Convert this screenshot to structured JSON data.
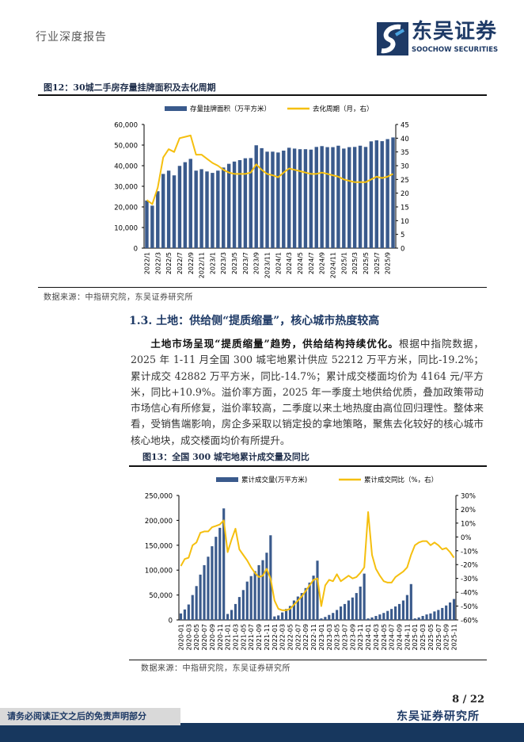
{
  "header": {
    "report_type": "行业深度报告",
    "logo_cn": "东吴证券",
    "logo_en": "SOOCHOW SECURITIES"
  },
  "figure12": {
    "caption": "图12：30城二手房存量挂牌面积及去化周期",
    "source": "数据来源：中指研究院，东吴证券研究所"
  },
  "section": {
    "heading": "1.3.  土地：供给侧“提质缩量”，核心城市热度较高"
  },
  "paragraph": {
    "lead": "土地市场呈现“提质缩量”趋势，供给结构持续优化。",
    "body": "根据中指院数据，2025 年 1-11 月全国 300 城宅地累计供应 52212 万平方米，同比-19.2%；累计成交 42882 万平方米，同比-14.7%；累计成交楼面均价为 4164 元/平方米，同比+10.9%。溢价率方面，2025 年一季度土地供给优质，叠加政策带动市场信心有所修复，溢价率较高，二季度以来土地热度由高位回归理性。整体来看，受销售端影响，房企多采取以销定投的拿地策略，聚焦去化较好的核心城市核心地块，成交楼面均价有所提升。"
  },
  "figure13": {
    "caption": "图13：全国 300 城宅地累计成交量及同比",
    "source": "数据来源：中指研究院，东吴证券研究所"
  },
  "footer": {
    "page": "8 / 22",
    "institute": "东吴证券研究所",
    "disclaimer": "请务必阅读正文之后的免责声明部分"
  },
  "colors": {
    "bar": "#3a5a8c",
    "line": "#f5bf0f",
    "brand": "#17375e"
  },
  "chart_data": [
    {
      "type": "bar+line",
      "title": "",
      "x": [
        "2022/1",
        "2022/2",
        "2022/3",
        "2022/4",
        "2022/5",
        "2022/6",
        "2022/7",
        "2022/8",
        "2022/9",
        "2022/10",
        "2022/11",
        "2022/12",
        "2023/1",
        "2023/2",
        "2023/3",
        "2023/4",
        "2023/5",
        "2023/6",
        "2023/7",
        "2023/8",
        "2023/9",
        "2023/10",
        "2023/11",
        "2023/12",
        "2024/1",
        "2024/2",
        "2024/3",
        "2024/4",
        "2024/5",
        "2024/6",
        "2024/7",
        "2024/8",
        "2024/9",
        "2024/10",
        "2024/11",
        "2024/12",
        "2025/1",
        "2025/2",
        "2025/3",
        "2025/4",
        "2025/5",
        "2025/6",
        "2025/7",
        "2025/8",
        "2025/9",
        "2025/10"
      ],
      "xticks": [
        "2022/1",
        "2022/3",
        "2022/5",
        "2022/7",
        "2022/9",
        "2022/11",
        "2023/1",
        "2023/3",
        "2023/5",
        "2023/7",
        "2023/9",
        "2023/11",
        "2024/1",
        "2024/3",
        "2024/5",
        "2024/7",
        "2024/9",
        "2024/11",
        "2025/1",
        "2025/3",
        "2025/5",
        "2025/7",
        "2025/9"
      ],
      "ylim_left": [
        0,
        60000
      ],
      "yticks_left": [
        "0",
        "10,000",
        "20,000",
        "30,000",
        "40,000",
        "50,000",
        "60,000"
      ],
      "ylim_right": [
        0,
        45
      ],
      "yticks_right": [
        "0",
        "5",
        "10",
        "15",
        "20",
        "25",
        "30",
        "35",
        "40",
        "45"
      ],
      "legend": "top",
      "series": [
        {
          "name": "存量挂牌面积（万平方米）",
          "type": "bar",
          "axis": "left",
          "values": [
            23100,
            20600,
            27600,
            36000,
            37600,
            35300,
            39900,
            41700,
            43300,
            37600,
            38300,
            37200,
            36500,
            37600,
            39100,
            40900,
            42000,
            42700,
            43600,
            43700,
            49900,
            48500,
            46800,
            46800,
            46400,
            47300,
            48700,
            48300,
            48000,
            48000,
            47800,
            49100,
            49500,
            49000,
            49000,
            49700,
            48300,
            49000,
            49100,
            49700,
            49100,
            51800,
            52300,
            51900,
            52900,
            53700
          ]
        },
        {
          "name": "去化周期（月，右）",
          "type": "line",
          "axis": "right",
          "values": [
            17.5,
            16,
            22,
            33,
            36,
            35,
            40,
            40.5,
            41,
            34,
            34,
            32.5,
            31,
            30,
            28.5,
            27.5,
            27,
            27,
            27,
            27.5,
            30.5,
            28.5,
            27,
            26.5,
            25.8,
            27.5,
            29,
            28.5,
            28,
            27.5,
            27,
            27,
            27.5,
            27,
            26.5,
            26,
            25,
            24.5,
            24,
            24,
            24,
            25,
            26,
            25.5,
            26,
            27
          ]
        }
      ]
    },
    {
      "type": "bar+line",
      "title": "",
      "x": [
        "2020-01",
        "2020-02",
        "2020-03",
        "2020-04",
        "2020-05",
        "2020-06",
        "2020-07",
        "2020-08",
        "2020-09",
        "2020-10",
        "2020-11",
        "2020-12",
        "2021-01",
        "2021-02",
        "2021-03",
        "2021-04",
        "2021-05",
        "2021-06",
        "2021-07",
        "2021-08",
        "2021-09",
        "2021-10",
        "2021-11",
        "2021-12",
        "2022-01",
        "2022-02",
        "2022-03",
        "2022-04",
        "2022-05",
        "2022-06",
        "2022-07",
        "2022-08",
        "2022-09",
        "2022-10",
        "2022-11",
        "2022-12",
        "2023-01",
        "2023-02",
        "2023-03",
        "2023-04",
        "2023-05",
        "2023-06",
        "2023-07",
        "2023-08",
        "2023-09",
        "2023-10",
        "2023-11",
        "2023-12",
        "2024-01",
        "2024-02",
        "2024-03",
        "2024-04",
        "2024-05",
        "2024-06",
        "2024-07",
        "2024-08",
        "2024-09",
        "2024-10",
        "2024-11",
        "2024-12",
        "2025-01",
        "2025-02",
        "2025-03",
        "2025-04",
        "2025-05",
        "2025-06",
        "2025-07",
        "2025-08",
        "2025-09",
        "2025-10",
        "2025-11"
      ],
      "xticks": [
        "2020-01",
        "2020-03",
        "2020-05",
        "2020-07",
        "2020-09",
        "2020-11",
        "2021-01",
        "2021-03",
        "2021-05",
        "2021-07",
        "2021-09",
        "2021-11",
        "2022-01",
        "2022-03",
        "2022-05",
        "2022-07",
        "2022-09",
        "2022-11",
        "2023-01",
        "2023-03",
        "2023-05",
        "2023-07",
        "2023-09",
        "2023-11",
        "2024-01",
        "2024-03",
        "2024-05",
        "2024-07",
        "2024-09",
        "2024-11",
        "2025-01",
        "2025-03",
        "2025-05",
        "2025-07",
        "2025-09",
        "2025-11"
      ],
      "ylim_left": [
        0,
        250000
      ],
      "yticks_left": [
        "0",
        "50,000",
        "100,000",
        "150,000",
        "200,000",
        "250,000"
      ],
      "ylim_right": [
        -60,
        30
      ],
      "yticks_right": [
        "-60%",
        "-50%",
        "-40%",
        "-30%",
        "-20%",
        "-10%",
        "0%",
        "10%",
        "20%",
        "30%"
      ],
      "legend": "top",
      "series": [
        {
          "name": "累计成交量(万平方米)",
          "type": "bar",
          "axis": "left",
          "values": [
            13000,
            21000,
            31000,
            50000,
            68000,
            91000,
            110000,
            127000,
            148000,
            167000,
            185000,
            224000,
            12000,
            20000,
            32000,
            46000,
            60000,
            77000,
            88000,
            98000,
            110000,
            120000,
            135000,
            170000,
            7000,
            9000,
            15000,
            22000,
            28000,
            39000,
            47000,
            54000,
            64000,
            75000,
            89000,
            119000,
            3000,
            6000,
            10000,
            14000,
            20000,
            27000,
            32000,
            39000,
            45000,
            54000,
            67000,
            93000,
            3000,
            5000,
            8000,
            11000,
            14000,
            18000,
            22000,
            27000,
            32000,
            39000,
            50000,
            72000,
            3000,
            5000,
            8000,
            11000,
            13000,
            17000,
            20000,
            24000,
            29000,
            35000,
            42000
          ]
        },
        {
          "name": "累计成交同比（%，右）",
          "type": "line",
          "axis": "right",
          "values": [
            -21,
            -16,
            -15,
            -6,
            -4,
            3,
            4,
            4,
            7,
            8,
            9,
            12,
            -11,
            -2,
            6,
            -9,
            -13,
            -17,
            -22,
            -26,
            -29,
            -28,
            -23,
            -30,
            -46,
            -52,
            -53,
            -53,
            -52,
            -49,
            -46,
            -43,
            -39,
            -35,
            -31,
            -30,
            -50,
            -35,
            -31,
            -32,
            -27,
            -32,
            -30,
            -28,
            -30,
            -29,
            -26,
            -22,
            18,
            -13,
            -23,
            -28,
            -32,
            -33,
            -33,
            -29,
            -27,
            -25,
            -22,
            -13,
            -6,
            -4,
            -3,
            -3,
            -6,
            -4,
            -6,
            -9,
            -8,
            -11,
            -15
          ]
        }
      ]
    }
  ]
}
